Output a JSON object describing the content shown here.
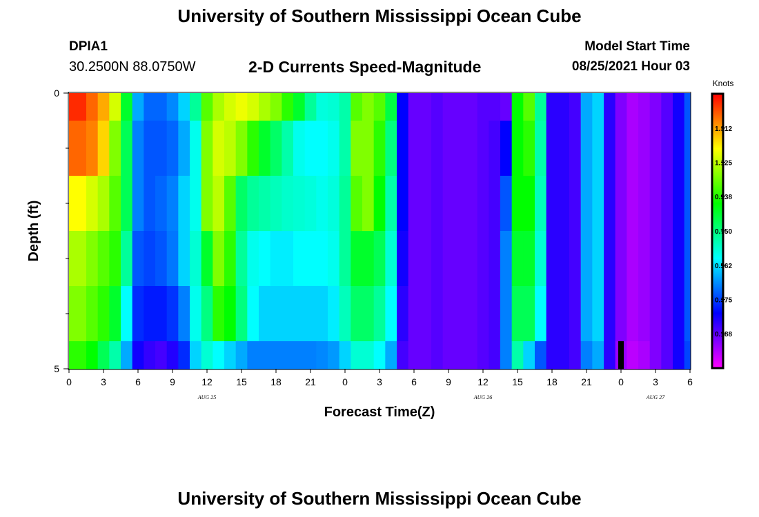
{
  "header": {
    "title": "University of Southern Mississippi Ocean Cube",
    "station": "DPIA1",
    "coords": "30.2500N  88.0750W",
    "subtitle": "2-D Currents Speed-Magnitude",
    "model_start_label": "Model Start Time",
    "model_start_value": "08/25/2021 Hour 03"
  },
  "footer": {
    "title": "University of Southern Mississippi Ocean Cube"
  },
  "chart_data": {
    "type": "heatmap",
    "title": "2-D Currents Speed-Magnitude",
    "xlabel": "Forecast Time(Z)",
    "ylabel": "Depth (ft)",
    "x_tick_labels": [
      "0",
      "3",
      "6",
      "9",
      "12",
      "15",
      "18",
      "21",
      "0",
      "3",
      "6",
      "9",
      "12",
      "15",
      "18",
      "21",
      "0",
      "3",
      "6"
    ],
    "x_hours": [
      0,
      3,
      6,
      9,
      12,
      15,
      18,
      21,
      24,
      27,
      30,
      33,
      36,
      39,
      42,
      45,
      48,
      51,
      54
    ],
    "day_labels": [
      {
        "text": "AUG 25",
        "hour": 12
      },
      {
        "text": "AUG 26",
        "hour": 36
      },
      {
        "text": "AUG 27",
        "hour": 51
      }
    ],
    "y_tick_labels": [
      "0",
      "5"
    ],
    "ylim": [
      0,
      5
    ],
    "xlim": [
      0,
      54
    ],
    "colorbar": {
      "title": "Knots",
      "range": [
        0,
        1.5
      ],
      "tick_labels": [
        "1.312",
        "1.125",
        "0.938",
        "0.750",
        "0.562",
        "0.375",
        "0.188"
      ],
      "tick_values": [
        1.312,
        1.125,
        0.938,
        0.75,
        0.562,
        0.375,
        0.188
      ]
    },
    "marker": {
      "hour": 48,
      "depth_start": 4.5,
      "depth_end": 5
    },
    "depth_rows": [
      0,
      0.5,
      1.5,
      2.5,
      3.5,
      4.5,
      5
    ],
    "time_keys": [
      0,
      1,
      2,
      3,
      4,
      5,
      6,
      7,
      8,
      9,
      10,
      11,
      12,
      13,
      14,
      15,
      16,
      17,
      18,
      19,
      20,
      21,
      22,
      23,
      24,
      25,
      26,
      27,
      28,
      29,
      30,
      31,
      32,
      33,
      34,
      35,
      36,
      37,
      38,
      39,
      40,
      41,
      42,
      43,
      44,
      45,
      46,
      47,
      48,
      49,
      50,
      51,
      52,
      53,
      54
    ],
    "speed_profiles": [
      [
        1.45,
        1.45,
        1.38,
        1.3,
        1.15,
        0.85,
        0.5,
        0.42,
        0.42,
        0.46,
        0.55,
        0.72,
        1.0,
        1.1,
        1.15,
        1.18,
        1.15,
        1.1,
        1.05,
        0.95,
        0.85,
        0.72,
        0.64,
        0.65,
        0.7,
        1.0,
        1.05,
        1.0,
        0.82,
        0.3,
        0.18,
        0.18,
        0.2,
        0.18,
        0.18,
        0.18,
        0.2,
        0.2,
        0.18,
        0.9,
        1.0,
        0.72,
        0.25,
        0.25,
        0.22,
        0.5,
        0.55,
        0.25,
        0.15,
        0.1,
        0.12,
        0.15,
        0.2,
        0.28,
        0.4
      ],
      [
        1.38,
        1.38,
        1.35,
        1.25,
        1.05,
        0.8,
        0.45,
        0.4,
        0.4,
        0.42,
        0.5,
        0.62,
        1.05,
        1.15,
        1.12,
        1.05,
        0.95,
        0.85,
        0.78,
        0.7,
        0.62,
        0.6,
        0.6,
        0.62,
        0.7,
        1.05,
        1.05,
        0.95,
        0.75,
        0.3,
        0.18,
        0.18,
        0.2,
        0.18,
        0.18,
        0.18,
        0.2,
        0.22,
        0.3,
        0.9,
        0.95,
        0.7,
        0.25,
        0.25,
        0.22,
        0.5,
        0.55,
        0.25,
        0.15,
        0.1,
        0.12,
        0.15,
        0.2,
        0.28,
        0.4
      ],
      [
        1.2,
        1.2,
        1.15,
        1.1,
        1.0,
        0.8,
        0.45,
        0.4,
        0.42,
        0.45,
        0.55,
        0.62,
        1.05,
        1.12,
        1.0,
        0.78,
        0.72,
        0.7,
        0.68,
        0.66,
        0.65,
        0.64,
        0.62,
        0.64,
        0.72,
        1.0,
        1.05,
        0.9,
        0.7,
        0.3,
        0.18,
        0.18,
        0.2,
        0.18,
        0.18,
        0.18,
        0.2,
        0.22,
        0.4,
        0.9,
        0.9,
        0.68,
        0.25,
        0.25,
        0.22,
        0.5,
        0.55,
        0.25,
        0.15,
        0.1,
        0.12,
        0.15,
        0.2,
        0.28,
        0.4
      ],
      [
        1.1,
        1.1,
        1.05,
        1.0,
        0.95,
        0.72,
        0.4,
        0.38,
        0.4,
        0.44,
        0.55,
        0.65,
        0.85,
        1.05,
        0.95,
        0.72,
        0.62,
        0.6,
        0.58,
        0.58,
        0.6,
        0.6,
        0.6,
        0.62,
        0.72,
        0.85,
        0.85,
        0.8,
        0.65,
        0.28,
        0.18,
        0.18,
        0.2,
        0.18,
        0.18,
        0.18,
        0.2,
        0.22,
        0.45,
        0.85,
        0.85,
        0.65,
        0.25,
        0.25,
        0.22,
        0.5,
        0.55,
        0.25,
        0.15,
        0.1,
        0.12,
        0.15,
        0.2,
        0.28,
        0.4
      ],
      [
        1.05,
        1.05,
        1.0,
        0.95,
        0.85,
        0.6,
        0.35,
        0.33,
        0.33,
        0.36,
        0.45,
        0.62,
        0.75,
        0.95,
        0.9,
        0.75,
        0.6,
        0.55,
        0.55,
        0.55,
        0.55,
        0.55,
        0.55,
        0.58,
        0.68,
        0.78,
        0.78,
        0.72,
        0.6,
        0.25,
        0.18,
        0.18,
        0.2,
        0.18,
        0.18,
        0.18,
        0.2,
        0.22,
        0.45,
        0.8,
        0.8,
        0.6,
        0.25,
        0.25,
        0.22,
        0.5,
        0.55,
        0.25,
        0.15,
        0.1,
        0.12,
        0.15,
        0.2,
        0.28,
        0.4
      ],
      [
        0.95,
        0.95,
        0.9,
        0.8,
        0.7,
        0.5,
        0.28,
        0.24,
        0.22,
        0.26,
        0.35,
        0.55,
        0.65,
        0.6,
        0.55,
        0.5,
        0.45,
        0.45,
        0.45,
        0.45,
        0.45,
        0.45,
        0.46,
        0.48,
        0.55,
        0.65,
        0.65,
        0.6,
        0.5,
        0.22,
        0.18,
        0.18,
        0.2,
        0.18,
        0.18,
        0.18,
        0.2,
        0.22,
        0.45,
        0.7,
        0.55,
        0.4,
        0.25,
        0.25,
        0.22,
        0.45,
        0.5,
        0.25,
        0.12,
        0.08,
        0.1,
        0.15,
        0.2,
        0.28,
        0.38
      ]
    ]
  }
}
